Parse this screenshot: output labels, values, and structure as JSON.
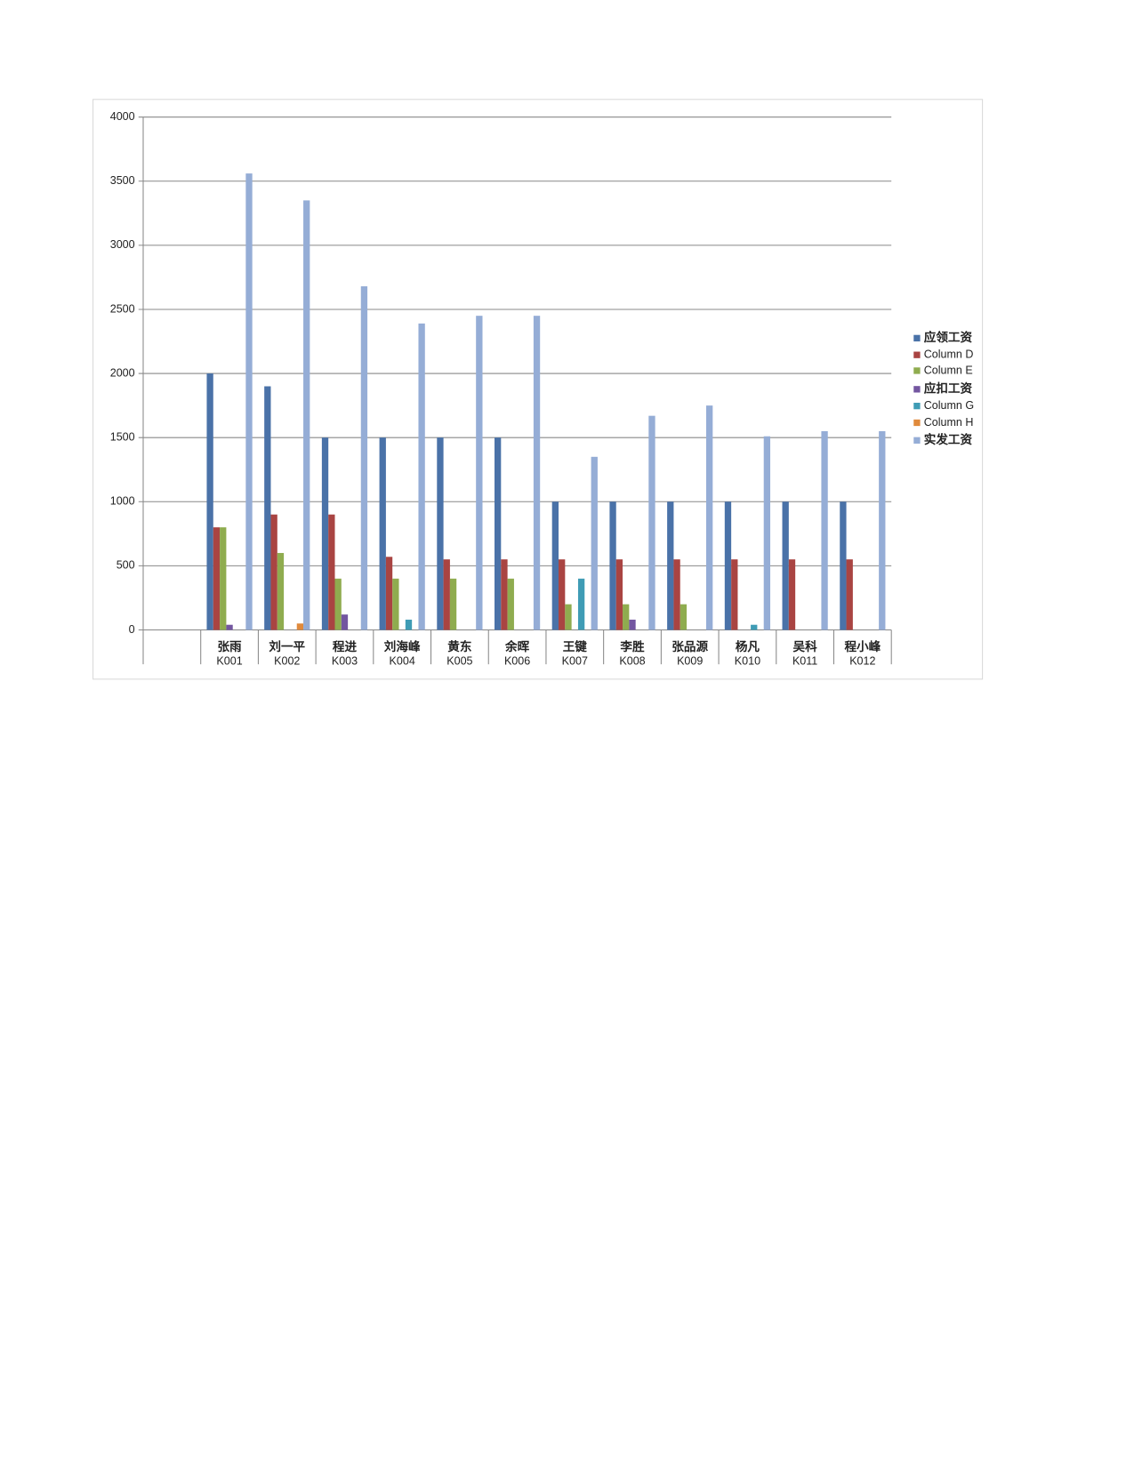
{
  "chart_data": {
    "type": "bar",
    "categories": [
      null,
      "张雨",
      "刘一平",
      "程进",
      "刘海峰",
      "黄东",
      "余晖",
      "王键",
      "李胜",
      "张品源",
      "杨凡",
      "吴科",
      "程小峰"
    ],
    "subcategories": [
      null,
      "K001",
      "K002",
      "K003",
      "K004",
      "K005",
      "K006",
      "K007",
      "K008",
      "K009",
      "K010",
      "K011",
      "K012"
    ],
    "series": [
      {
        "name": "应领工资",
        "color": "#4a72a8",
        "values": [
          null,
          2000,
          1900,
          1500,
          1500,
          1500,
          1500,
          1000,
          1000,
          1000,
          1000,
          1000,
          1000
        ]
      },
      {
        "name": "Column D",
        "color": "#a94442",
        "values": [
          null,
          800,
          900,
          900,
          570,
          550,
          550,
          550,
          550,
          550,
          550,
          550,
          550
        ]
      },
      {
        "name": "Column E",
        "color": "#8fac4f",
        "values": [
          null,
          800,
          600,
          400,
          400,
          400,
          400,
          200,
          200,
          200,
          null,
          null,
          null
        ]
      },
      {
        "name": "应扣工资",
        "color": "#7356a0",
        "values": [
          null,
          40,
          null,
          120,
          null,
          null,
          null,
          null,
          80,
          null,
          null,
          null,
          null
        ]
      },
      {
        "name": "Column G",
        "color": "#3f9cb5",
        "values": [
          null,
          null,
          null,
          null,
          80,
          null,
          null,
          400,
          null,
          null,
          40,
          null,
          null
        ]
      },
      {
        "name": "Column H",
        "color": "#e08a3c",
        "values": [
          null,
          null,
          50,
          null,
          null,
          null,
          null,
          null,
          null,
          null,
          null,
          null,
          null
        ]
      },
      {
        "name": "实发工资",
        "color": "#95add6",
        "values": [
          null,
          3560,
          3350,
          2680,
          2390,
          2450,
          2450,
          1350,
          1670,
          1750,
          1510,
          1550,
          1550
        ]
      }
    ],
    "ylim": [
      0,
      4000
    ],
    "yticks": [
      0,
      500,
      1000,
      1500,
      2000,
      2500,
      3000,
      3500,
      4000
    ],
    "grid": true,
    "legend": "right"
  }
}
